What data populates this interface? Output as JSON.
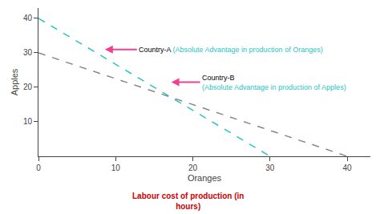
{
  "chart_data": {
    "type": "line",
    "xlabel": "Oranges",
    "ylabel": "Apples",
    "series": [
      {
        "x": [
          0,
          30
        ],
        "values": [
          40,
          0
        ],
        "color": "#2ac4c4",
        "line_style": "dashed"
      },
      {
        "x": [
          0,
          40
        ],
        "values": [
          30,
          0
        ],
        "color": "#888888",
        "line_style": "dashed"
      }
    ],
    "xlim": [
      0,
      43
    ],
    "ylim": [
      0,
      43
    ],
    "xticks": [
      0,
      10,
      20,
      30,
      40
    ],
    "yticks": [
      10,
      20,
      30,
      40
    ],
    "grid": false,
    "annotations": [
      {
        "label": "Country-A ",
        "text": "(Absolute Advantage in production of Oranges)",
        "color": "#2ac4c4",
        "arrow_color": "#f04090"
      },
      {
        "label": "Country-B ",
        "text": "(Absolute Advantage in production of Apples)",
        "color": "#2ac4c4",
        "arrow_color": "#f04090"
      }
    ],
    "caption": {
      "text": [
        "Labour cost of production (in",
        "hours)"
      ],
      "color": "#cc0000"
    }
  }
}
